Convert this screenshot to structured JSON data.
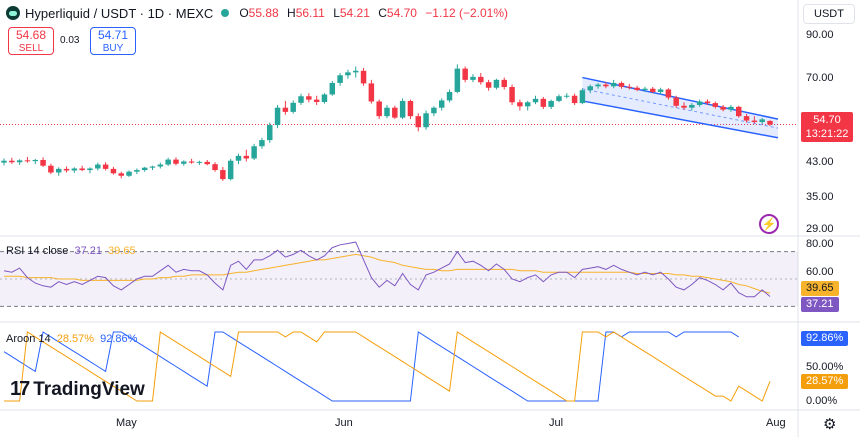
{
  "header": {
    "title": "Hyperliquid / USDT · 1D · MEXC",
    "ohlc": [
      {
        "key": "O",
        "value": "55.88"
      },
      {
        "key": "H",
        "value": "56.11"
      },
      {
        "key": "L",
        "value": "54.21"
      },
      {
        "key": "C",
        "value": "54.70"
      }
    ],
    "change": "−1.12 (−2.01%)",
    "currency": "USDT"
  },
  "trade": {
    "sell_price": "54.68",
    "sell_label": "SELL",
    "buy_price": "54.71",
    "buy_label": "BUY",
    "spread": "0.03"
  },
  "price_tag": {
    "price": "54.70",
    "countdown": "13:21:22"
  },
  "rsi": {
    "label": "RSI",
    "params": "14 close",
    "value": "37.21",
    "ma_value": "39.65"
  },
  "aroon": {
    "label": "Aroon",
    "params": "14",
    "up_value": "28.57%",
    "down_value": "92.86%"
  },
  "x_axis_labels": [
    "May",
    "Jun",
    "Jul",
    "Aug"
  ],
  "price_axis_labels": [
    "90.00",
    "70.00",
    "43.00",
    "35.00",
    "29.00"
  ],
  "rsi_axis_labels": [
    "80.00",
    "60.00"
  ],
  "aroon_axis_labels": [
    "50.00%",
    "0.00%"
  ],
  "watermark": "TradingView",
  "colors": {
    "up": "#26a69a",
    "down": "#f23645",
    "rsi": "#7e57c2",
    "rsi_ma": "#f7b32b",
    "aroon_up": "#f59e0b",
    "aroon_down": "#2962ff",
    "channel": "#2962ff"
  },
  "chart_data": [
    {
      "type": "candlestick",
      "title": "Hyperliquid / USDT · 1D · MEXC",
      "y_scale": "log",
      "ylim": [
        28,
        100
      ],
      "x_ticks": [
        "May",
        "Jun",
        "Jul",
        "Aug"
      ],
      "y_ticks": [
        90,
        70,
        43,
        35,
        29
      ],
      "candles": [
        {
          "o": 43.5,
          "h": 44.6,
          "l": 42.8,
          "c": 44.0
        },
        {
          "o": 44.0,
          "h": 44.8,
          "l": 43.2,
          "c": 43.6
        },
        {
          "o": 43.6,
          "h": 44.4,
          "l": 42.9,
          "c": 44.1
        },
        {
          "o": 44.1,
          "h": 45.0,
          "l": 43.5,
          "c": 43.9
        },
        {
          "o": 43.9,
          "h": 44.5,
          "l": 43.1,
          "c": 44.2
        },
        {
          "o": 44.2,
          "h": 44.9,
          "l": 42.4,
          "c": 42.7
        },
        {
          "o": 42.7,
          "h": 43.2,
          "l": 40.6,
          "c": 41.0
        },
        {
          "o": 41.0,
          "h": 42.3,
          "l": 40.2,
          "c": 41.9
        },
        {
          "o": 41.9,
          "h": 42.5,
          "l": 41.0,
          "c": 41.5
        },
        {
          "o": 41.5,
          "h": 42.3,
          "l": 40.9,
          "c": 42.0
        },
        {
          "o": 42.0,
          "h": 42.7,
          "l": 41.3,
          "c": 41.6
        },
        {
          "o": 41.6,
          "h": 42.3,
          "l": 40.8,
          "c": 42.0
        },
        {
          "o": 42.0,
          "h": 43.5,
          "l": 41.5,
          "c": 43.0
        },
        {
          "o": 43.0,
          "h": 43.6,
          "l": 41.5,
          "c": 41.9
        },
        {
          "o": 41.9,
          "h": 42.4,
          "l": 40.5,
          "c": 40.8
        },
        {
          "o": 40.8,
          "h": 41.2,
          "l": 39.6,
          "c": 40.2
        },
        {
          "o": 40.2,
          "h": 41.5,
          "l": 39.9,
          "c": 41.2
        },
        {
          "o": 41.2,
          "h": 42.0,
          "l": 40.6,
          "c": 41.6
        },
        {
          "o": 41.6,
          "h": 42.4,
          "l": 41.2,
          "c": 42.2
        },
        {
          "o": 42.2,
          "h": 42.7,
          "l": 41.6,
          "c": 42.5
        },
        {
          "o": 42.5,
          "h": 43.5,
          "l": 42.0,
          "c": 43.0
        },
        {
          "o": 43.0,
          "h": 44.8,
          "l": 42.6,
          "c": 44.3
        },
        {
          "o": 44.3,
          "h": 44.9,
          "l": 42.8,
          "c": 43.2
        },
        {
          "o": 43.2,
          "h": 44.1,
          "l": 42.7,
          "c": 43.8
        },
        {
          "o": 43.8,
          "h": 44.5,
          "l": 43.2,
          "c": 43.5
        },
        {
          "o": 43.5,
          "h": 44.0,
          "l": 42.9,
          "c": 43.7
        },
        {
          "o": 43.7,
          "h": 44.2,
          "l": 42.8,
          "c": 43.1
        },
        {
          "o": 43.1,
          "h": 43.6,
          "l": 41.2,
          "c": 41.6
        },
        {
          "o": 41.6,
          "h": 42.4,
          "l": 39.0,
          "c": 39.4
        },
        {
          "o": 39.4,
          "h": 44.5,
          "l": 39.1,
          "c": 44.0
        },
        {
          "o": 44.0,
          "h": 45.9,
          "l": 43.1,
          "c": 45.3
        },
        {
          "o": 45.3,
          "h": 47.0,
          "l": 43.8,
          "c": 44.6
        },
        {
          "o": 44.6,
          "h": 48.7,
          "l": 44.2,
          "c": 48.0
        },
        {
          "o": 48.0,
          "h": 50.5,
          "l": 47.3,
          "c": 49.8
        },
        {
          "o": 49.8,
          "h": 55.3,
          "l": 49.0,
          "c": 54.5
        },
        {
          "o": 54.5,
          "h": 61.5,
          "l": 53.5,
          "c": 60.5
        },
        {
          "o": 60.5,
          "h": 63.0,
          "l": 58.0,
          "c": 59.0
        },
        {
          "o": 59.0,
          "h": 63.2,
          "l": 58.4,
          "c": 62.3
        },
        {
          "o": 62.3,
          "h": 65.8,
          "l": 61.5,
          "c": 64.8
        },
        {
          "o": 64.8,
          "h": 66.0,
          "l": 62.5,
          "c": 63.5
        },
        {
          "o": 63.5,
          "h": 65.0,
          "l": 61.5,
          "c": 62.6
        },
        {
          "o": 62.6,
          "h": 66.0,
          "l": 62.0,
          "c": 65.5
        },
        {
          "o": 65.5,
          "h": 71.0,
          "l": 65.0,
          "c": 70.2
        },
        {
          "o": 70.2,
          "h": 74.5,
          "l": 69.0,
          "c": 73.5
        },
        {
          "o": 73.5,
          "h": 76.0,
          "l": 72.0,
          "c": 74.8
        },
        {
          "o": 74.8,
          "h": 77.5,
          "l": 72.5,
          "c": 75.5
        },
        {
          "o": 75.5,
          "h": 76.8,
          "l": 69.0,
          "c": 70.0
        },
        {
          "o": 70.0,
          "h": 71.5,
          "l": 62.0,
          "c": 62.8
        },
        {
          "o": 62.8,
          "h": 63.5,
          "l": 56.5,
          "c": 57.5
        },
        {
          "o": 57.5,
          "h": 61.5,
          "l": 56.8,
          "c": 60.5
        },
        {
          "o": 60.5,
          "h": 61.2,
          "l": 56.5,
          "c": 57.0
        },
        {
          "o": 57.0,
          "h": 64.0,
          "l": 56.5,
          "c": 63.0
        },
        {
          "o": 63.0,
          "h": 63.5,
          "l": 56.5,
          "c": 57.5
        },
        {
          "o": 57.5,
          "h": 58.5,
          "l": 52.5,
          "c": 53.8
        },
        {
          "o": 53.8,
          "h": 59.5,
          "l": 53.0,
          "c": 58.5
        },
        {
          "o": 58.5,
          "h": 61.0,
          "l": 57.5,
          "c": 60.5
        },
        {
          "o": 60.5,
          "h": 64.0,
          "l": 59.5,
          "c": 63.2
        },
        {
          "o": 63.2,
          "h": 67.5,
          "l": 62.5,
          "c": 66.5
        },
        {
          "o": 66.5,
          "h": 78.5,
          "l": 66.0,
          "c": 76.5
        },
        {
          "o": 76.5,
          "h": 77.5,
          "l": 70.5,
          "c": 71.5
        },
        {
          "o": 71.5,
          "h": 74.0,
          "l": 70.5,
          "c": 72.8
        },
        {
          "o": 72.8,
          "h": 74.5,
          "l": 69.5,
          "c": 70.5
        },
        {
          "o": 70.5,
          "h": 71.5,
          "l": 67.0,
          "c": 68.2
        },
        {
          "o": 68.2,
          "h": 72.0,
          "l": 67.5,
          "c": 71.5
        },
        {
          "o": 71.5,
          "h": 72.5,
          "l": 67.5,
          "c": 68.5
        },
        {
          "o": 68.5,
          "h": 69.5,
          "l": 61.5,
          "c": 62.5
        },
        {
          "o": 62.5,
          "h": 63.5,
          "l": 59.5,
          "c": 61.0
        },
        {
          "o": 61.0,
          "h": 63.0,
          "l": 59.5,
          "c": 62.5
        },
        {
          "o": 62.5,
          "h": 65.0,
          "l": 61.8,
          "c": 63.8
        },
        {
          "o": 63.8,
          "h": 64.5,
          "l": 60.0,
          "c": 60.8
        },
        {
          "o": 60.8,
          "h": 63.5,
          "l": 60.0,
          "c": 63.0
        },
        {
          "o": 63.0,
          "h": 65.5,
          "l": 62.5,
          "c": 64.8
        },
        {
          "o": 64.8,
          "h": 66.0,
          "l": 64.0,
          "c": 65.0
        },
        {
          "o": 65.0,
          "h": 65.8,
          "l": 61.5,
          "c": 62.2
        },
        {
          "o": 62.2,
          "h": 68.0,
          "l": 61.8,
          "c": 67.2
        },
        {
          "o": 67.2,
          "h": 69.5,
          "l": 66.0,
          "c": 68.8
        },
        {
          "o": 68.8,
          "h": 70.2,
          "l": 67.8,
          "c": 69.5
        },
        {
          "o": 69.5,
          "h": 70.5,
          "l": 68.0,
          "c": 68.8
        },
        {
          "o": 68.8,
          "h": 71.5,
          "l": 68.0,
          "c": 70.2
        },
        {
          "o": 70.2,
          "h": 70.8,
          "l": 67.8,
          "c": 68.6
        },
        {
          "o": 68.6,
          "h": 69.8,
          "l": 67.5,
          "c": 68.2
        },
        {
          "o": 68.2,
          "h": 69.0,
          "l": 66.8,
          "c": 67.3
        },
        {
          "o": 67.3,
          "h": 68.6,
          "l": 66.5,
          "c": 67.8
        },
        {
          "o": 67.8,
          "h": 68.5,
          "l": 66.0,
          "c": 66.5
        },
        {
          "o": 66.5,
          "h": 68.2,
          "l": 65.5,
          "c": 67.5
        },
        {
          "o": 67.5,
          "h": 68.0,
          "l": 63.5,
          "c": 64.3
        },
        {
          "o": 64.3,
          "h": 65.0,
          "l": 60.5,
          "c": 61.2
        },
        {
          "o": 61.2,
          "h": 62.5,
          "l": 59.8,
          "c": 60.5
        },
        {
          "o": 60.5,
          "h": 62.2,
          "l": 59.5,
          "c": 61.5
        },
        {
          "o": 61.5,
          "h": 63.5,
          "l": 60.8,
          "c": 62.8
        },
        {
          "o": 62.8,
          "h": 63.6,
          "l": 61.5,
          "c": 62.2
        },
        {
          "o": 62.2,
          "h": 62.8,
          "l": 60.2,
          "c": 60.8
        },
        {
          "o": 60.8,
          "h": 61.5,
          "l": 59.2,
          "c": 59.8
        },
        {
          "o": 59.8,
          "h": 61.5,
          "l": 59.0,
          "c": 60.8
        },
        {
          "o": 60.8,
          "h": 61.2,
          "l": 57.0,
          "c": 57.5
        },
        {
          "o": 57.5,
          "h": 58.3,
          "l": 55.3,
          "c": 56.0
        },
        {
          "o": 56.0,
          "h": 57.5,
          "l": 55.0,
          "c": 55.5
        },
        {
          "o": 55.5,
          "h": 56.9,
          "l": 54.8,
          "c": 56.4
        },
        {
          "o": 55.88,
          "h": 56.11,
          "l": 54.21,
          "c": 54.7
        }
      ],
      "channel": {
        "upper": [
          72.5,
          56.5
        ],
        "lower": [
          63.0,
          50.5
        ]
      }
    },
    {
      "type": "line",
      "title": "RSI 14 close",
      "ylim": [
        20,
        80
      ],
      "y_ticks": [
        80,
        60
      ],
      "band": [
        30,
        70
      ],
      "series": [
        {
          "name": "RSI",
          "values": [
            56,
            55,
            58,
            51,
            47,
            45,
            44,
            48,
            46,
            48,
            46,
            49,
            52,
            51,
            45,
            42,
            46,
            50,
            52,
            52,
            56,
            60,
            55,
            57,
            56,
            56,
            53,
            47,
            42,
            60,
            63,
            57,
            64,
            64,
            67,
            71,
            66,
            68,
            71,
            67,
            64,
            67,
            73,
            75,
            76,
            77,
            64,
            51,
            44,
            49,
            45,
            54,
            46,
            42,
            53,
            55,
            58,
            61,
            70,
            62,
            63,
            60,
            56,
            61,
            57,
            50,
            48,
            51,
            53,
            48,
            53,
            55,
            55,
            51,
            57,
            58,
            59,
            57,
            60,
            57,
            55,
            53,
            55,
            53,
            55,
            50,
            44,
            42,
            46,
            51,
            49,
            46,
            42,
            47,
            40,
            37,
            37,
            42,
            37.21
          ]
        },
        {
          "name": "RSI-based MA",
          "values": [
            52,
            52,
            52,
            51,
            51,
            51,
            51,
            50,
            50,
            50,
            49,
            49,
            49,
            49,
            49,
            49,
            49,
            49,
            50,
            50,
            51,
            51,
            52,
            52,
            53,
            53,
            53,
            53,
            53,
            54,
            55,
            55,
            56,
            57,
            58,
            59,
            60,
            61,
            62,
            63,
            64,
            64,
            65,
            66,
            67,
            68,
            67,
            66,
            64,
            63,
            62,
            60,
            59,
            58,
            57,
            57,
            56,
            56,
            57,
            57,
            57,
            57,
            57,
            57,
            57,
            57,
            56,
            56,
            56,
            55,
            55,
            55,
            55,
            55,
            55,
            55,
            55,
            55,
            55,
            55,
            55,
            54,
            54,
            54,
            54,
            54,
            53,
            53,
            52,
            52,
            51,
            50,
            49,
            48,
            46,
            45,
            43,
            41,
            39.65
          ]
        }
      ]
    },
    {
      "type": "line",
      "title": "Aroon 14",
      "ylim": [
        0,
        100
      ],
      "y_ticks": [
        50,
        0
      ],
      "series": [
        {
          "name": "Aroon Up",
          "values": [
            0,
            0,
            0,
            100,
            92.86,
            85.71,
            78.57,
            71.43,
            64.29,
            57.14,
            50,
            42.86,
            35.71,
            28.57,
            21.43,
            14.29,
            7.14,
            0,
            0,
            0,
            100,
            92.86,
            85.71,
            78.57,
            71.43,
            64.29,
            57.14,
            50,
            42.86,
            35.71,
            100,
            100,
            100,
            100,
            100,
            100,
            92.86,
            100,
            100,
            92.86,
            85.71,
            100,
            100,
            100,
            100,
            100,
            92.86,
            85.71,
            78.57,
            71.43,
            64.29,
            57.14,
            50,
            42.86,
            35.71,
            28.57,
            21.43,
            14.29,
            100,
            92.86,
            85.71,
            78.57,
            71.43,
            64.29,
            57.14,
            50,
            42.86,
            35.71,
            28.57,
            21.43,
            14.29,
            7.14,
            0,
            0,
            100,
            100,
            100,
            92.86,
            100,
            92.86,
            85.71,
            78.57,
            71.43,
            64.29,
            57.14,
            50,
            42.86,
            35.71,
            28.57,
            21.43,
            14.29,
            7.14,
            7.14,
            0,
            21.43,
            14.29,
            7.14,
            0,
            28.57
          ]
        },
        {
          "name": "Aroon Down",
          "values": [
            71.43,
            64.29,
            57.14,
            50,
            42.86,
            100,
            92.86,
            85.71,
            78.57,
            71.43,
            64.29,
            57.14,
            50,
            42.86,
            100,
            100,
            92.86,
            85.71,
            78.57,
            71.43,
            64.29,
            57.14,
            50,
            42.86,
            35.71,
            28.57,
            21.43,
            100,
            100,
            92.86,
            85.71,
            78.57,
            71.43,
            64.29,
            57.14,
            50,
            42.86,
            35.71,
            28.57,
            21.43,
            14.29,
            7.14,
            0,
            0,
            0,
            0,
            0,
            0,
            0,
            0,
            0,
            0,
            0,
            100,
            92.86,
            85.71,
            78.57,
            71.43,
            64.29,
            57.14,
            50,
            42.86,
            35.71,
            28.57,
            21.43,
            14.29,
            7.14,
            0,
            0,
            0,
            0,
            0,
            0,
            0,
            0,
            0,
            0,
            100,
            100,
            92.86,
            100,
            100,
            100,
            100,
            100,
            100,
            92.86,
            100,
            100,
            100,
            100,
            100,
            100,
            100,
            92.86
          ]
        }
      ]
    }
  ]
}
